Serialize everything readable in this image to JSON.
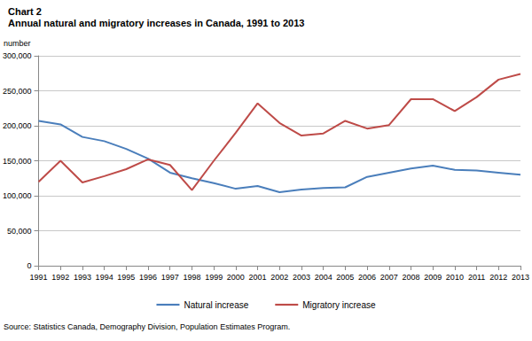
{
  "chart_data": {
    "type": "line",
    "title": "Chart 2",
    "subtitle": "Annual natural and migratory increases in Canada, 1991 to 2013",
    "y_label": "number",
    "source": "Source: Statistics Canada, Demography Division, Population Estimates Program.",
    "categories": [
      "1991",
      "1992",
      "1993",
      "1994",
      "1995",
      "1996",
      "1997",
      "1998",
      "1999",
      "2000",
      "2001",
      "2002",
      "2003",
      "2004",
      "2005",
      "2006",
      "2007",
      "2008",
      "2009",
      "2010",
      "2011",
      "2012",
      "2013"
    ],
    "series": [
      {
        "name": "Natural increase",
        "color": "#4a7ebb",
        "values": [
          207000,
          202000,
          184000,
          178000,
          167000,
          153000,
          133000,
          125000,
          118000,
          110000,
          114000,
          105000,
          109000,
          111000,
          112000,
          127000,
          133000,
          139000,
          143000,
          137000,
          136000,
          133000,
          130000
        ]
      },
      {
        "name": "Migratory increase",
        "color": "#be4b48",
        "values": [
          120000,
          150000,
          119000,
          128000,
          138000,
          152000,
          144000,
          108000,
          150000,
          190000,
          232000,
          204000,
          186000,
          189000,
          207000,
          196000,
          201000,
          238000,
          238000,
          221000,
          241000,
          266000,
          274000
        ]
      }
    ],
    "ylim": [
      0,
      300000
    ],
    "yticks": [
      0,
      {
        "value": 50000,
        "label": "50,000"
      },
      {
        "value": 100000,
        "label": "100,000"
      },
      {
        "value": 150000,
        "label": "150,000"
      },
      {
        "value": 200000,
        "label": "200,000"
      },
      {
        "value": 250000,
        "label": "250,000"
      },
      {
        "value": 300000,
        "label": "300,000"
      }
    ],
    "grid": true,
    "legend": "bottom"
  }
}
